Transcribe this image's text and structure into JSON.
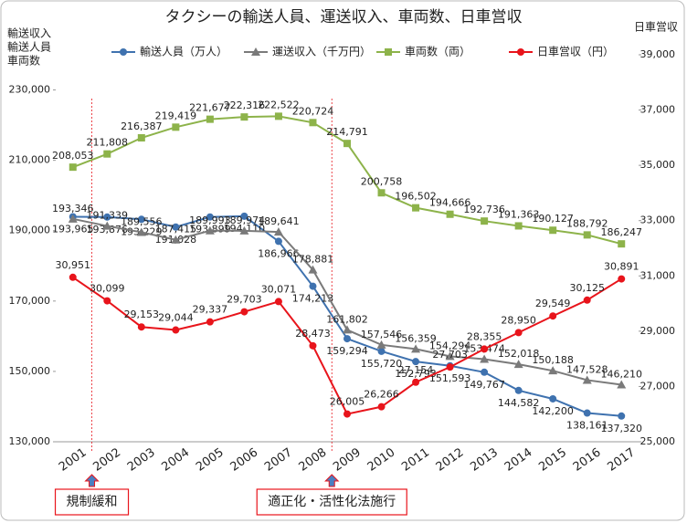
{
  "chart_data": {
    "type": "line",
    "title": "タクシーの輸送人員、運送収入、車両数、日車営収",
    "y_label": [
      "輸送収入",
      "輸送人員",
      "車両数"
    ],
    "y2_label": "日車営収",
    "categories": [
      "2001",
      "2002",
      "2003",
      "2004",
      "2005",
      "2006",
      "2007",
      "2008",
      "2009",
      "2010",
      "2011",
      "2012",
      "2013",
      "2014",
      "2015",
      "2016",
      "2017"
    ],
    "ylim": [
      130000,
      240000
    ],
    "yticks": [
      {
        "value": 130000,
        "label": "130,000"
      },
      {
        "value": 150000,
        "label": "150,000"
      },
      {
        "value": 170000,
        "label": "170,000"
      },
      {
        "value": 190000,
        "label": "190,000"
      },
      {
        "value": 210000,
        "label": "210,000"
      },
      {
        "value": 230000,
        "label": "230,000"
      }
    ],
    "y2lim": [
      25000,
      39000
    ],
    "y2ticks": [
      {
        "value": 25000,
        "label": "25,000"
      },
      {
        "value": 27000,
        "label": "27,000"
      },
      {
        "value": 29000,
        "label": "29,000"
      },
      {
        "value": 31000,
        "label": "31,000"
      },
      {
        "value": 33000,
        "label": "33,000"
      },
      {
        "value": 35000,
        "label": "35,000"
      },
      {
        "value": 37000,
        "label": "37,000"
      },
      {
        "value": 39000,
        "label": "39,000"
      }
    ],
    "series": [
      {
        "name": "輸送人員（万人）",
        "color": "#3f72af",
        "marker": "circle",
        "values": [
          193965,
          193876,
          193229,
          191028,
          193899,
          194110,
          186966,
          174213,
          159294,
          155720,
          152793,
          151593,
          149767,
          144582,
          142200,
          138161,
          137320
        ],
        "value_labels": [
          "193,965",
          "193,876",
          "193,229",
          "191,028",
          "193,899",
          "194,110",
          "186,966",
          "174,213",
          "159,294",
          "155,720",
          "152,793",
          "151,593",
          "149,767",
          "144,582",
          "142,200",
          "138,161",
          "137,320"
        ]
      },
      {
        "name": "運送収入（千万円）",
        "color": "#7a7a7a",
        "marker": "triangle",
        "values": [
          193346,
          191339,
          189556,
          187415,
          189993,
          189974,
          189641,
          178881,
          161802,
          157546,
          156359,
          154294,
          153474,
          152018,
          150188,
          147528,
          146210
        ],
        "value_labels": [
          "193,346",
          "191,339",
          "189,556",
          "187,415",
          "189,993",
          "189,974",
          "189,641",
          "178,881",
          "161,802",
          "157,546",
          "156,359",
          "154,294",
          "153,474",
          "152,018",
          "150,188",
          "147,528",
          "146,210"
        ]
      },
      {
        "name": "車両数（両）",
        "color": "#8db34a",
        "marker": "square",
        "values": [
          208053,
          211808,
          216387,
          219419,
          221677,
          222316,
          222522,
          220724,
          214791,
          200758,
          196502,
          194666,
          192736,
          191363,
          190127,
          188792,
          186247
        ],
        "value_labels": [
          "208,053",
          "211,808",
          "216,387",
          "219,419",
          "221,677",
          "222,316",
          "222,522",
          "220,724",
          "214,791",
          "200,758",
          "196,502",
          "194,666",
          "192,736",
          "191,363",
          "190,127",
          "188,792",
          "186,247"
        ]
      },
      {
        "name": "日車営収（円）",
        "color": "#e8141b",
        "marker": "circle",
        "axis": "y2",
        "values": [
          30951,
          30099,
          29153,
          29044,
          29337,
          29703,
          30071,
          28473,
          26005,
          26266,
          27154,
          27703,
          28355,
          28950,
          29549,
          30125,
          30891
        ],
        "value_labels": [
          "30,951",
          "30,099",
          "29,153",
          "29,044",
          "29,337",
          "29,703",
          "30,071",
          "28,473",
          "26,005",
          "26,266",
          "27,154",
          "27,703",
          "28,355",
          "28,950",
          "29,549",
          "30,125",
          "30,891"
        ]
      }
    ],
    "annotations": [
      {
        "text": "規制緩和",
        "x": "2002"
      },
      {
        "text": "適正化・活性化法施行",
        "x": "2009"
      }
    ]
  }
}
